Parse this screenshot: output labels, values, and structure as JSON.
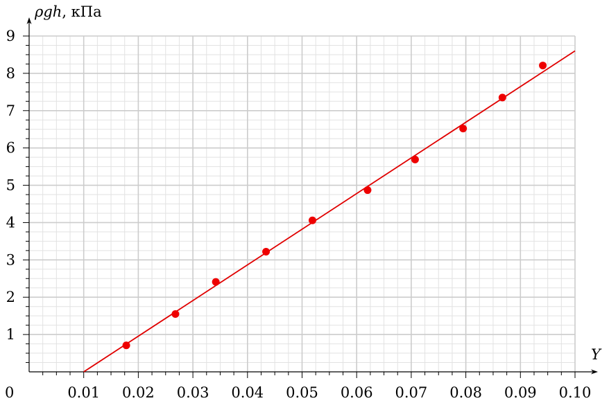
{
  "chart_data": {
    "type": "scatter",
    "ylabel": {
      "italic": "ρgh",
      "suffix": ", кПа"
    },
    "xlabel": "Y",
    "origin_label": "0",
    "xlim": [
      0,
      0.1
    ],
    "ylim": [
      0,
      9
    ],
    "x_ticks": [
      "0.01",
      "0.02",
      "0.03",
      "0.04",
      "0.05",
      "0.06",
      "0.07",
      "0.08",
      "0.09",
      "0.10"
    ],
    "x_tick_values": [
      0.01,
      0.02,
      0.03,
      0.04,
      0.05,
      0.06,
      0.07,
      0.08,
      0.09,
      0.1
    ],
    "y_ticks": [
      "1",
      "2",
      "3",
      "4",
      "5",
      "6",
      "7",
      "8",
      "9"
    ],
    "y_tick_values": [
      1,
      2,
      3,
      4,
      5,
      6,
      7,
      8,
      9
    ],
    "grid": true,
    "points": [
      {
        "x": 0.0178,
        "y": 0.71
      },
      {
        "x": 0.0268,
        "y": 1.55
      },
      {
        "x": 0.0342,
        "y": 2.41
      },
      {
        "x": 0.0434,
        "y": 3.22
      },
      {
        "x": 0.0519,
        "y": 4.06
      },
      {
        "x": 0.062,
        "y": 4.87
      },
      {
        "x": 0.0707,
        "y": 5.69
      },
      {
        "x": 0.0795,
        "y": 6.52
      },
      {
        "x": 0.0867,
        "y": 7.35
      },
      {
        "x": 0.0941,
        "y": 8.21
      }
    ],
    "fit_line": {
      "x": [
        0.01,
        0.1
      ],
      "y": [
        0.0,
        8.6
      ]
    },
    "colors": {
      "points": "#ee0000",
      "line": "#e00000",
      "grid_major": "#cccccc",
      "grid_minor": "#e2e2e2",
      "axis": "#000000"
    }
  }
}
